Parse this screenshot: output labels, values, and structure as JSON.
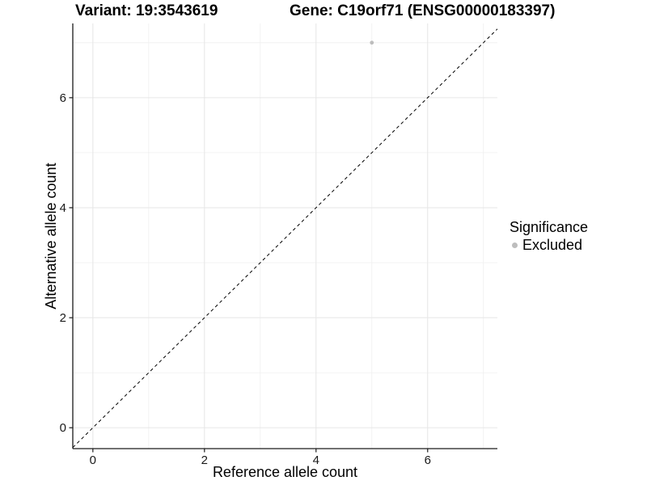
{
  "titles": {
    "variant": "Variant: 19:3543619",
    "gene": "Gene: C19orf71 (ENSG00000183397)"
  },
  "axes": {
    "x_label": "Reference allele count",
    "y_label": "Alternative allele count"
  },
  "legend": {
    "title": "Significance",
    "items": [
      {
        "label": "Excluded",
        "color": "#bdbdbd"
      }
    ]
  },
  "colors": {
    "background": "#ffffff",
    "point": "#bdbdbd",
    "grid_major": "#e6e6e6",
    "grid_minor": "#efefef",
    "axis_line": "#1a1a1a",
    "tick_label": "#1a1a1a",
    "identity_line": "#000000"
  },
  "chart_data": {
    "type": "scatter",
    "title_left": "Variant: 19:3543619",
    "title_right": "Gene: C19orf71 (ENSG00000183397)",
    "xlabel": "Reference allele count",
    "ylabel": "Alternative allele count",
    "x_ticks": [
      0,
      2,
      4,
      6
    ],
    "y_ticks": [
      0,
      2,
      4,
      6
    ],
    "x_minor_ticks": [
      1,
      3,
      5,
      7
    ],
    "y_minor_ticks": [
      1,
      3,
      5,
      7
    ],
    "xlim": [
      -0.36,
      7.25
    ],
    "ylim": [
      -0.38,
      7.35
    ],
    "grid": true,
    "legend_title": "Significance",
    "legend_position": "right",
    "series": [
      {
        "name": "Excluded",
        "color": "#bdbdbd",
        "points": [
          {
            "x": 5,
            "y": 7
          }
        ]
      }
    ],
    "reference_line": {
      "equation": "y = x",
      "style": "dashed",
      "color": "#000000"
    }
  }
}
